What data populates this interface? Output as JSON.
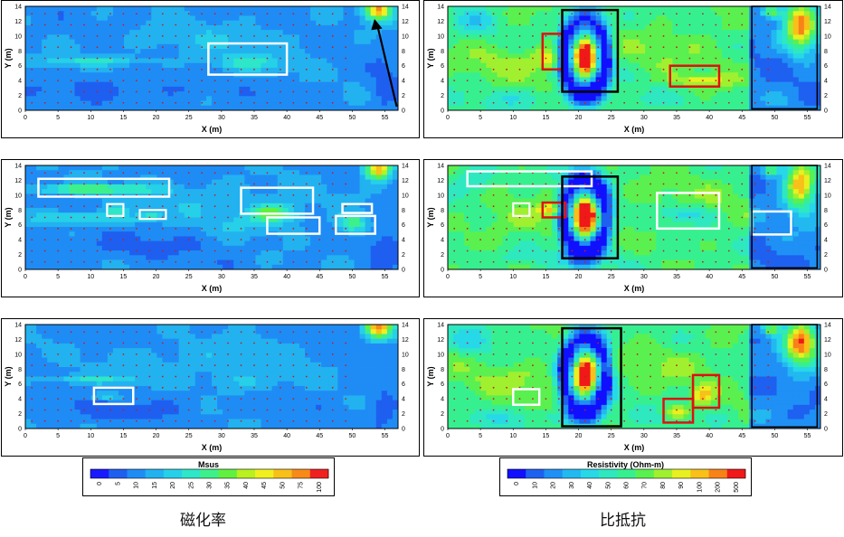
{
  "chart_data": {
    "type": "heatmap",
    "x_axis": {
      "label": "X (m)",
      "ticks": [
        0,
        5,
        10,
        15,
        20,
        25,
        30,
        35,
        40,
        45,
        50,
        55
      ],
      "range": [
        0,
        57
      ]
    },
    "y_axis": {
      "label": "Y (m)",
      "ticks": [
        0,
        2,
        4,
        6,
        8,
        10,
        12,
        14
      ],
      "range": [
        0,
        14
      ]
    },
    "panels": [
      {
        "group": "magnetic",
        "row": 1
      },
      {
        "group": "magnetic",
        "row": 2
      },
      {
        "group": "magnetic",
        "row": 3
      },
      {
        "group": "resistivity",
        "row": 1
      },
      {
        "group": "resistivity",
        "row": 2
      },
      {
        "group": "resistivity",
        "row": 3
      }
    ],
    "magnetic_scale": {
      "title": "Msus",
      "values": [
        "0",
        "5",
        "10",
        "15",
        "20",
        "25",
        "30",
        "35",
        "40",
        "45",
        "50",
        "75",
        "100"
      ],
      "colors": [
        "#1a1aff",
        "#1e5ff0",
        "#1f8cf5",
        "#22b2f0",
        "#26d0e8",
        "#2ee6c8",
        "#3ef08a",
        "#62f040",
        "#b8f020",
        "#f0f020",
        "#f8c018",
        "#f88a18",
        "#f02020"
      ]
    },
    "resistivity_scale": {
      "title": "Resistivity (Ohm-m)",
      "values": [
        "0",
        "10",
        "20",
        "30",
        "40",
        "50",
        "60",
        "70",
        "80",
        "90",
        "100",
        "200",
        "500"
      ],
      "colors": [
        "#1010ff",
        "#1e60f0",
        "#1f90f5",
        "#22b8f0",
        "#26d8e8",
        "#2ee8c0",
        "#36f090",
        "#5af050",
        "#a0f030",
        "#e8f020",
        "#f8c018",
        "#f88218",
        "#f01818"
      ]
    }
  },
  "captions": {
    "magnetic": "磁化率",
    "resistivity": "比抵抗"
  },
  "colors": {
    "annotation_white": "#ffffff",
    "annotation_red": "#e01010",
    "annotation_black": "#000000"
  }
}
